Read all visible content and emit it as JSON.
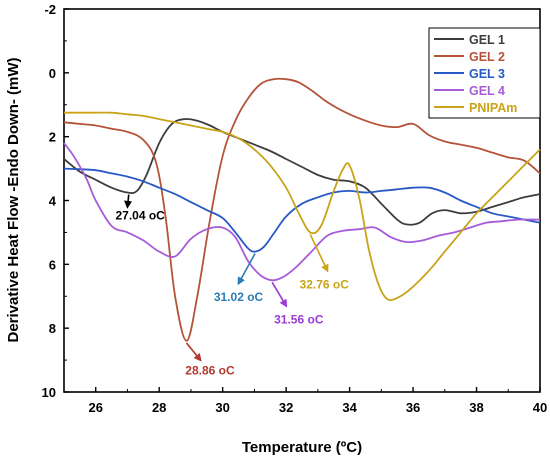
{
  "chart_data": {
    "type": "line",
    "xlabel": "Temperature (ºC)",
    "ylabel": "Derivative Heat Flow -Endo Down- (mW)",
    "xlim": [
      25,
      40
    ],
    "ylim": [
      -2,
      10
    ],
    "y_inverted": true,
    "x_ticks": [
      26,
      28,
      30,
      32,
      34,
      36,
      38,
      40
    ],
    "y_ticks": [
      -2,
      0,
      2,
      4,
      6,
      8,
      10
    ],
    "grid": false,
    "legend_position": "top-right",
    "series": [
      {
        "name": "GEL 1",
        "color": "#3d3d3d",
        "x": [
          25,
          25.5,
          26,
          26.5,
          27,
          27.3,
          27.6,
          28,
          28.4,
          28.8,
          29.2,
          29.6,
          30,
          30.5,
          31,
          31.5,
          32,
          32.5,
          33,
          33.5,
          34,
          34.5,
          35,
          35.5,
          35.8,
          36.2,
          36.6,
          37,
          37.5,
          38,
          38.5,
          39,
          39.5,
          40
        ],
        "values": [
          2.7,
          3.1,
          3.35,
          3.6,
          3.75,
          3.7,
          3.2,
          2.2,
          1.6,
          1.45,
          1.5,
          1.65,
          1.85,
          2.05,
          2.25,
          2.45,
          2.7,
          2.95,
          3.2,
          3.35,
          3.4,
          3.6,
          4.1,
          4.6,
          4.75,
          4.7,
          4.4,
          4.3,
          4.4,
          4.35,
          4.2,
          4.05,
          3.9,
          3.8
        ]
      },
      {
        "name": "GEL 2",
        "color": "#b5533a",
        "x": [
          25,
          25.5,
          26,
          26.5,
          27,
          27.5,
          27.9,
          28.2,
          28.5,
          28.86,
          29.2,
          29.6,
          30,
          30.4,
          30.8,
          31.2,
          31.6,
          32,
          32.4,
          32.8,
          33.2,
          33.6,
          34,
          34.5,
          35,
          35.5,
          36,
          36.5,
          37,
          37.5,
          38,
          38.5,
          39,
          39.5,
          40
        ],
        "values": [
          1.55,
          1.6,
          1.65,
          1.75,
          1.85,
          2.1,
          2.8,
          4.5,
          7.0,
          8.4,
          7.0,
          4.6,
          2.6,
          1.5,
          0.8,
          0.35,
          0.2,
          0.2,
          0.3,
          0.55,
          0.85,
          1.1,
          1.3,
          1.5,
          1.65,
          1.7,
          1.6,
          1.95,
          2.15,
          2.25,
          2.35,
          2.5,
          2.65,
          2.75,
          3.15
        ]
      },
      {
        "name": "GEL 3",
        "color": "#2858c6",
        "x": [
          25,
          25.5,
          26,
          26.5,
          27,
          27.5,
          28,
          28.5,
          29,
          29.5,
          30,
          30.4,
          30.8,
          31.02,
          31.3,
          31.6,
          32,
          32.5,
          33,
          33.5,
          34,
          34.5,
          35,
          35.5,
          36,
          36.5,
          37,
          37.5,
          38,
          38.5,
          39,
          39.5,
          40
        ],
        "values": [
          3.0,
          3.02,
          3.05,
          3.15,
          3.25,
          3.4,
          3.6,
          3.8,
          4.05,
          4.3,
          4.55,
          5.0,
          5.5,
          5.6,
          5.45,
          5.05,
          4.5,
          4.1,
          3.9,
          3.75,
          3.7,
          3.75,
          3.7,
          3.65,
          3.6,
          3.6,
          3.75,
          4.0,
          4.2,
          4.4,
          4.5,
          4.6,
          4.7
        ]
      },
      {
        "name": "GEL 4",
        "color": "#a65cd8",
        "x": [
          25,
          25.3,
          25.7,
          26,
          26.5,
          27,
          27.5,
          28,
          28.5,
          29,
          29.5,
          30,
          30.4,
          30.8,
          31.2,
          31.56,
          31.9,
          32.3,
          32.8,
          33.3,
          33.8,
          34.3,
          34.8,
          35.3,
          35.8,
          36.3,
          36.8,
          37.3,
          37.8,
          38.3,
          38.8,
          39.3,
          40
        ],
        "values": [
          2.2,
          2.6,
          3.3,
          4.0,
          4.8,
          5.0,
          5.25,
          5.6,
          5.75,
          5.2,
          4.9,
          4.85,
          5.15,
          5.9,
          6.35,
          6.5,
          6.4,
          6.1,
          5.6,
          5.1,
          4.95,
          4.9,
          4.85,
          5.15,
          5.3,
          5.25,
          5.1,
          5.0,
          4.85,
          4.7,
          4.65,
          4.6,
          4.6
        ]
      },
      {
        "name": "PNIPAm",
        "color": "#c9a318",
        "x": [
          25,
          25.5,
          26,
          26.5,
          27,
          27.5,
          28,
          28.5,
          29,
          29.5,
          30,
          30.5,
          31,
          31.5,
          32,
          32.4,
          32.76,
          33.1,
          33.5,
          33.8,
          34,
          34.3,
          34.6,
          34.9,
          35.2,
          35.6,
          36,
          36.5,
          37,
          37.5,
          38,
          38.5,
          39,
          39.5,
          40
        ],
        "values": [
          1.25,
          1.25,
          1.25,
          1.25,
          1.3,
          1.35,
          1.45,
          1.55,
          1.65,
          1.75,
          1.85,
          2.05,
          2.4,
          2.9,
          3.6,
          4.4,
          5.0,
          4.8,
          3.7,
          3.0,
          2.9,
          3.9,
          5.5,
          6.6,
          7.1,
          7.0,
          6.7,
          6.2,
          5.6,
          5.0,
          4.4,
          3.9,
          3.4,
          2.9,
          2.4
        ]
      }
    ],
    "annotations": [
      {
        "series": "GEL 1",
        "value": "27.04",
        "unit": "oC",
        "color": "#000000",
        "x": 27.04,
        "y": 3.75
      },
      {
        "series": "GEL 2",
        "value": "28.86",
        "unit": "oC",
        "color": "#b03a2e",
        "x": 28.86,
        "y": 8.4
      },
      {
        "series": "GEL 3",
        "value": "31.02",
        "unit": "oC",
        "color": "#2b7bb6",
        "x": 31.02,
        "y": 5.6
      },
      {
        "series": "GEL 4",
        "value": "31.56",
        "unit": "oC",
        "color": "#9b3ad8",
        "x": 31.56,
        "y": 6.5
      },
      {
        "series": "PNIPAm",
        "value": "32.76",
        "unit": "oC",
        "color": "#c9a318",
        "x": 32.76,
        "y": 5.0
      }
    ]
  }
}
